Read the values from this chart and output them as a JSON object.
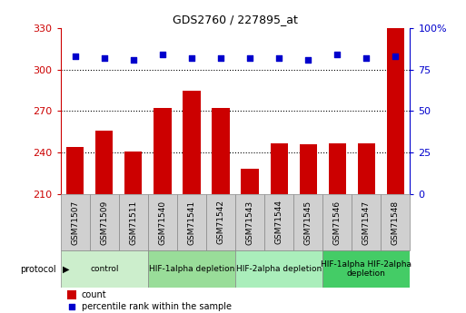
{
  "title": "GDS2760 / 227895_at",
  "samples": [
    "GSM71507",
    "GSM71509",
    "GSM71511",
    "GSM71540",
    "GSM71541",
    "GSM71542",
    "GSM71543",
    "GSM71544",
    "GSM71545",
    "GSM71546",
    "GSM71547",
    "GSM71548"
  ],
  "counts": [
    244,
    256,
    241,
    272,
    285,
    272,
    228,
    247,
    246,
    247,
    247,
    330
  ],
  "percentile_ranks": [
    83,
    82,
    81,
    84,
    82,
    82,
    82,
    82,
    81,
    84,
    82,
    83
  ],
  "ylim_left": [
    210,
    330
  ],
  "ylim_right": [
    0,
    100
  ],
  "yticks_left": [
    210,
    240,
    270,
    300,
    330
  ],
  "yticks_right": [
    0,
    25,
    50,
    75,
    100
  ],
  "bar_color": "#cc0000",
  "dot_color": "#0000cc",
  "protocol_groups": [
    {
      "label": "control",
      "start": 0,
      "end": 3,
      "color": "#cceecc"
    },
    {
      "label": "HIF-1alpha depletion",
      "start": 3,
      "end": 6,
      "color": "#99dd99"
    },
    {
      "label": "HIF-2alpha depletion",
      "start": 6,
      "end": 9,
      "color": "#aaeebb"
    },
    {
      "label": "HIF-1alpha HIF-2alpha\ndepletion",
      "start": 9,
      "end": 12,
      "color": "#44cc66"
    }
  ]
}
